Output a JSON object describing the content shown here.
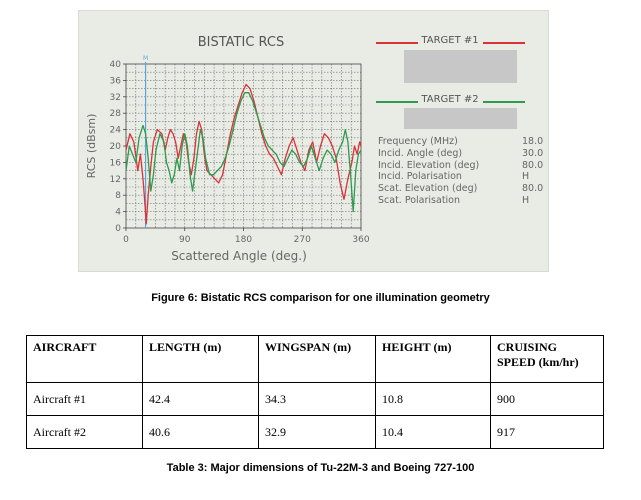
{
  "figure": {
    "caption": "Figure 6: Bistatic RCS comparison for one illumination geometry",
    "legend": {
      "target1": "TARGET #1",
      "target2": "TARGET #2"
    },
    "parameters": [
      {
        "label": "Frequency (MHz)",
        "value": "18.0"
      },
      {
        "label": "Incid. Angle (deg)",
        "value": "30.0"
      },
      {
        "label": "Incid. Elevation (deg)",
        "value": "80.0"
      },
      {
        "label": "Incid. Polarisation",
        "value": "H"
      },
      {
        "label": "Scat. Elevation (deg)",
        "value": "80.0"
      },
      {
        "label": "Scat. Polarisation",
        "value": "H"
      }
    ],
    "colors": {
      "target1": "#d9333a",
      "target2": "#2e9a4e",
      "marker": "#5aa7d6",
      "grid": "#6f6f6f"
    }
  },
  "chart_data": {
    "type": "line",
    "title": "BISTATIC RCS",
    "xlabel": "Scattered Angle (deg.)",
    "ylabel": "RCS (dBsm)",
    "xlim": [
      0,
      360
    ],
    "ylim": [
      0,
      40
    ],
    "xticks": [
      0,
      90,
      180,
      270,
      360
    ],
    "yticks": [
      0,
      4,
      8,
      12,
      16,
      20,
      24,
      28,
      32,
      36,
      40
    ],
    "grid": true,
    "marker": {
      "label": "M",
      "x": 30
    },
    "series": [
      {
        "name": "TARGET #1",
        "x": [
          0,
          6,
          12,
          18,
          22,
          26,
          29,
          31,
          34,
          38,
          42,
          48,
          55,
          60,
          64,
          68,
          72,
          76,
          80,
          84,
          88,
          92,
          96,
          100,
          104,
          108,
          112,
          116,
          120,
          124,
          130,
          136,
          142,
          148,
          154,
          160,
          166,
          172,
          178,
          184,
          190,
          196,
          202,
          208,
          214,
          220,
          226,
          232,
          238,
          244,
          250,
          256,
          262,
          268,
          274,
          280,
          286,
          292,
          298,
          304,
          310,
          316,
          322,
          328,
          334,
          340,
          346,
          350,
          354,
          358,
          360
        ],
        "y": [
          19,
          23,
          21,
          14,
          18,
          12,
          6,
          1,
          8,
          15,
          21,
          24,
          23,
          19,
          22,
          24,
          23,
          21,
          17,
          20,
          23,
          21,
          16,
          13,
          17,
          23,
          26,
          24,
          18,
          14,
          13,
          12,
          11,
          13,
          18,
          23,
          27,
          30,
          33,
          35,
          34,
          31,
          27,
          23,
          20,
          18,
          17,
          15,
          13,
          17,
          20,
          22,
          19,
          16,
          14,
          19,
          21,
          16,
          20,
          23,
          22,
          20,
          17,
          11,
          7,
          12,
          16,
          20,
          18,
          21,
          20
        ]
      },
      {
        "name": "TARGET #2",
        "x": [
          0,
          5,
          10,
          15,
          20,
          26,
          30,
          34,
          38,
          42,
          46,
          52,
          58,
          62,
          66,
          70,
          74,
          78,
          82,
          86,
          90,
          94,
          98,
          102,
          106,
          110,
          114,
          118,
          122,
          128,
          134,
          140,
          146,
          152,
          158,
          164,
          170,
          176,
          182,
          188,
          194,
          200,
          206,
          212,
          218,
          224,
          230,
          236,
          242,
          248,
          254,
          260,
          266,
          272,
          278,
          284,
          290,
          296,
          302,
          308,
          314,
          320,
          326,
          332,
          336,
          340,
          344,
          348,
          352,
          356,
          360
        ],
        "y": [
          14,
          20,
          18,
          16,
          22,
          25,
          23,
          17,
          9,
          13,
          19,
          23,
          21,
          16,
          14,
          11,
          13,
          17,
          14,
          20,
          23,
          20,
          13,
          9,
          14,
          19,
          24,
          22,
          17,
          13,
          13,
          14,
          15,
          17,
          20,
          24,
          28,
          31,
          33,
          33,
          31,
          28,
          25,
          22,
          20,
          19,
          18,
          16,
          15,
          17,
          19,
          18,
          16,
          15,
          17,
          20,
          17,
          14,
          17,
          19,
          18,
          16,
          19,
          21,
          24,
          21,
          13,
          4,
          14,
          18,
          19
        ]
      }
    ]
  },
  "table": {
    "caption": "Table 3: Major dimensions of Tu-22M-3 and Boeing 727-100",
    "headers": [
      "AIRCRAFT",
      "LENGTH (m)",
      "WINGSPAN (m)",
      "HEIGHT (m)",
      "CRUISING SPEED (km/hr)"
    ],
    "rows": [
      [
        "Aircraft #1",
        "42.4",
        "34.3",
        "10.8",
        "900"
      ],
      [
        "Aircraft #2",
        "40.6",
        "32.9",
        "10.4",
        "917"
      ]
    ]
  }
}
